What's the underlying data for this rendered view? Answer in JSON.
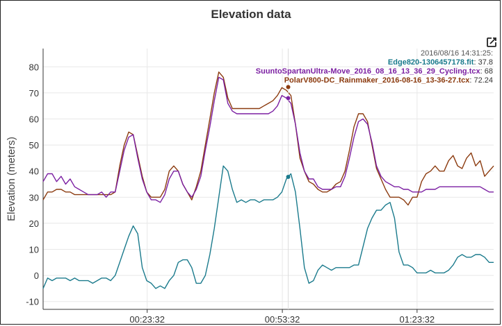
{
  "chart_data": {
    "type": "line",
    "title": "Elevation data",
    "xlabel": "",
    "ylabel": "Elevation (meters)",
    "xlim": [
      0,
      100
    ],
    "ylim": [
      -13,
      87
    ],
    "y_ticks": [
      -10,
      0,
      10,
      20,
      30,
      40,
      50,
      60,
      70,
      80
    ],
    "x_ticks": [
      {
        "x": 23.1,
        "label": "00:23:32"
      },
      {
        "x": 53.1,
        "label": "00:53:32"
      },
      {
        "x": 83.0,
        "label": "01:23:32"
      }
    ],
    "grid": true,
    "cursor_x": 54.4,
    "tooltip": {
      "header": "2016/08/16 14:31:25:",
      "rows": [
        {
          "name": "Edge820-1306457178.fit",
          "value": "37.8"
        },
        {
          "name": "SuuntoSpartanUltra-Move_2016_08_16_13_36_29_Cycling.tcx",
          "value": "68"
        },
        {
          "name": "PolarV800-DC_Rainmaker_2016-08-16_13-36-27.tcx",
          "value": "72.24"
        }
      ]
    },
    "series": [
      {
        "name": "Edge820-1306457178.fit",
        "color": "#1a7a8c",
        "marker_value": 37.8,
        "x": [
          0,
          1,
          2,
          3,
          4,
          5,
          6,
          7,
          8,
          9,
          10,
          11,
          12,
          13,
          14,
          15,
          16,
          17,
          18,
          19,
          20,
          21,
          22,
          23,
          24,
          25,
          26,
          27,
          28,
          29,
          30,
          31,
          32,
          33,
          34,
          35,
          36,
          37,
          38,
          39,
          40,
          41,
          42,
          43,
          44,
          45,
          46,
          47,
          48,
          49,
          50,
          51,
          52,
          53,
          54,
          55,
          56,
          57,
          58,
          59,
          60,
          61,
          62,
          63,
          64,
          65,
          66,
          67,
          68,
          69,
          70,
          71,
          72,
          73,
          74,
          75,
          76,
          77,
          78,
          79,
          80,
          81,
          82,
          83,
          84,
          85,
          86,
          87,
          88,
          89,
          90,
          91,
          92,
          93,
          94,
          95,
          96,
          97,
          98,
          99,
          100
        ],
        "y": [
          -5,
          -1,
          -2,
          -1,
          -1,
          -1,
          -2,
          -1,
          -2,
          -2,
          -2,
          -3,
          -2,
          -1,
          -1,
          -2,
          0,
          5,
          10,
          15,
          19,
          16,
          3,
          -2,
          -3,
          -5,
          -4,
          -5,
          -2,
          0,
          5,
          6,
          6,
          3,
          -3,
          -3,
          0,
          8,
          18,
          30,
          42,
          40,
          33,
          28,
          29,
          28,
          29,
          29,
          28,
          29,
          29,
          29,
          30,
          32,
          37,
          39,
          32,
          18,
          3,
          -3,
          -2,
          2,
          4,
          3,
          2,
          3,
          3,
          3,
          3,
          4,
          4,
          11,
          18,
          22,
          25,
          25,
          27,
          28,
          22,
          9,
          4,
          4,
          3,
          1,
          1,
          1,
          2,
          1,
          1,
          1,
          2,
          4,
          7,
          8,
          7,
          7,
          8,
          8,
          7,
          5,
          5
        ]
      },
      {
        "name": "SuuntoSpartanUltra-Move_2016_08_16_13_36_29_Cycling.tcx",
        "color": "#7b1fa2",
        "marker_value": 68,
        "x": [
          0,
          1,
          2,
          3,
          4,
          5,
          6,
          7,
          8,
          9,
          10,
          11,
          12,
          13,
          14,
          15,
          16,
          17,
          18,
          19,
          20,
          21,
          22,
          23,
          24,
          25,
          26,
          27,
          28,
          29,
          30,
          31,
          32,
          33,
          34,
          35,
          36,
          37,
          38,
          39,
          40,
          41,
          42,
          43,
          44,
          45,
          46,
          47,
          48,
          49,
          50,
          51,
          52,
          53,
          54,
          55,
          56,
          57,
          58,
          59,
          60,
          61,
          62,
          63,
          64,
          65,
          66,
          67,
          68,
          69,
          70,
          71,
          72,
          73,
          74,
          75,
          76,
          77,
          78,
          79,
          80,
          81,
          82,
          83,
          84,
          85,
          86,
          87,
          88,
          89,
          90,
          91,
          92,
          93,
          94,
          95,
          96,
          97,
          98,
          99,
          100
        ],
        "y": [
          36,
          39,
          39,
          36,
          38,
          35,
          37,
          34,
          33,
          32,
          31,
          31,
          31,
          32,
          30,
          32,
          32,
          40,
          48,
          53,
          54,
          45,
          37,
          32,
          29,
          29,
          28,
          31,
          37,
          40,
          40,
          35,
          32,
          30,
          33,
          38,
          48,
          57,
          67,
          76,
          75,
          66,
          63,
          62,
          62,
          62,
          62,
          62,
          62,
          62,
          62,
          63,
          65,
          69,
          68,
          66,
          58,
          47,
          40,
          37,
          37,
          34,
          33,
          33,
          33,
          34,
          34,
          38,
          45,
          53,
          59,
          60,
          58,
          51,
          42,
          38,
          36,
          35,
          34,
          34,
          33,
          33,
          32,
          32,
          32,
          33,
          33,
          33,
          34,
          34,
          34,
          34,
          34,
          34,
          34,
          34,
          34,
          34,
          33,
          32,
          32
        ]
      },
      {
        "name": "PolarV800-DC_Rainmaker_2016-08-16_13-36-27.tcx",
        "color": "#8b3a0e",
        "marker_value": 72.24,
        "x": [
          0,
          1,
          2,
          3,
          4,
          5,
          6,
          7,
          8,
          9,
          10,
          11,
          12,
          13,
          14,
          15,
          16,
          17,
          18,
          19,
          20,
          21,
          22,
          23,
          24,
          25,
          26,
          27,
          28,
          29,
          30,
          31,
          32,
          33,
          34,
          35,
          36,
          37,
          38,
          39,
          40,
          41,
          42,
          43,
          44,
          45,
          46,
          47,
          48,
          49,
          50,
          51,
          52,
          53,
          54,
          55,
          56,
          57,
          58,
          59,
          60,
          61,
          62,
          63,
          64,
          65,
          66,
          67,
          68,
          69,
          70,
          71,
          72,
          73,
          74,
          75,
          76,
          77,
          78,
          79,
          80,
          81,
          82,
          83,
          84,
          85,
          86,
          87,
          88,
          89,
          90,
          91,
          92,
          93,
          94,
          95,
          96,
          97,
          98,
          99,
          100
        ],
        "y": [
          29,
          32,
          32,
          33,
          33,
          32,
          32,
          31,
          31,
          31,
          31,
          31,
          31,
          31,
          31,
          31,
          32,
          42,
          50,
          55,
          54,
          46,
          38,
          32,
          30,
          30,
          30,
          33,
          40,
          42,
          40,
          35,
          32,
          29,
          34,
          40,
          50,
          60,
          70,
          78,
          76,
          68,
          64,
          64,
          64,
          64,
          64,
          64,
          64,
          65,
          66,
          67,
          69,
          72,
          71,
          69,
          58,
          45,
          40,
          36,
          35,
          33,
          32,
          32,
          33,
          35,
          36,
          40,
          48,
          57,
          62,
          62,
          59,
          50,
          41,
          37,
          33,
          30,
          30,
          30,
          29,
          27,
          30,
          30,
          36,
          39,
          40,
          42,
          40,
          40,
          44,
          46,
          42,
          41,
          45,
          47,
          42,
          44,
          38,
          40,
          42
        ]
      }
    ]
  }
}
